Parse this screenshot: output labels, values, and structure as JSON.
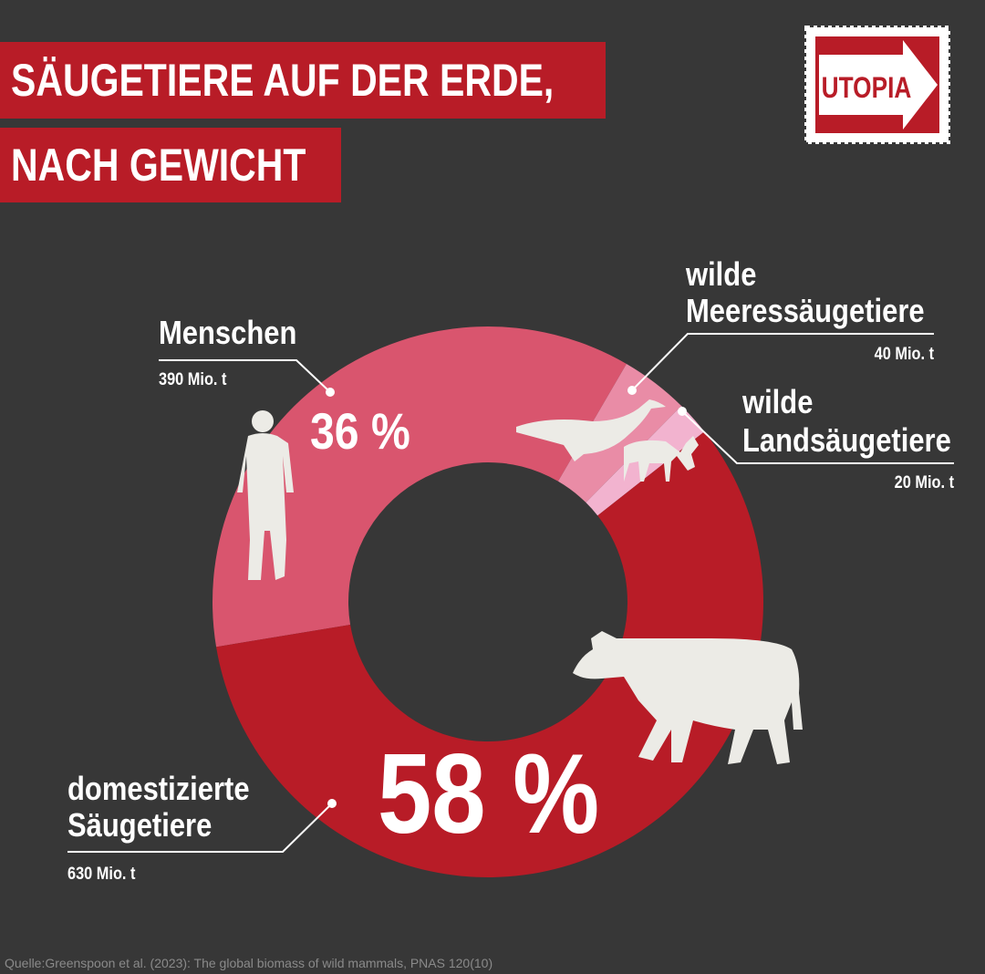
{
  "title_line1": "SÄUGETIERE AUF DER ERDE,",
  "title_line2": "NACH GEWICHT",
  "logo_text": "UTOPIA",
  "source": "Quelle:Greenspoon et al. (2023): The global biomass of wild mammals, PNAS 120(10)",
  "chart_data": {
    "type": "pie",
    "donut": true,
    "title": "SÄUGETIERE AUF DER ERDE, NACH GEWICHT",
    "unit": "Mio. t",
    "slices": [
      {
        "name": "Menschen",
        "label_lines": [
          "Menschen"
        ],
        "value": 390,
        "value_label": "390 Mio. t",
        "percent": 36,
        "percent_label": "36 %",
        "color": "#d9556e"
      },
      {
        "name": "wilde Meeressäugetiere",
        "label_lines": [
          "wilde",
          "Meeressäugetiere"
        ],
        "value": 40,
        "value_label": "40 Mio. t",
        "percent": 4,
        "color": "#e98ca6"
      },
      {
        "name": "wilde Landsäugetiere",
        "label_lines": [
          "wilde",
          "Landsäugetiere"
        ],
        "value": 20,
        "value_label": "20 Mio. t",
        "percent": 2,
        "color": "#f2b3cf"
      },
      {
        "name": "domestizierte Säugetiere",
        "label_lines": [
          "domestizierte",
          "Säugetiere"
        ],
        "value": 630,
        "value_label": "630 Mio. t",
        "percent": 58,
        "percent_label": "58 %",
        "color": "#b81c27"
      }
    ]
  },
  "colors": {
    "background": "#373737",
    "accent": "#b81c27",
    "silhouette": "#ecebe6"
  }
}
